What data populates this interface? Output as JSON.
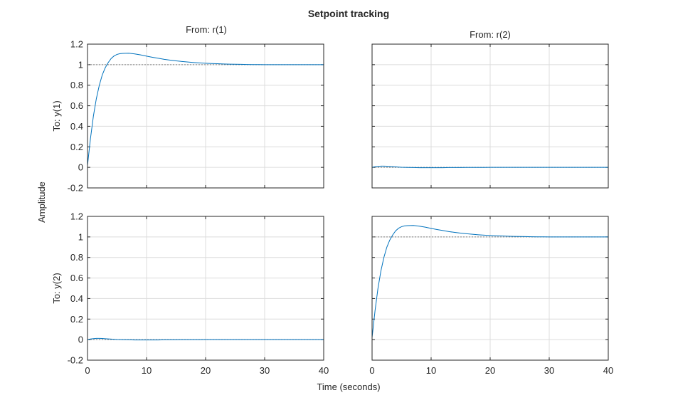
{
  "chart_data": {
    "type": "line",
    "title": "Setpoint tracking",
    "xlabel": "Time (seconds)",
    "ylabel": "Amplitude",
    "grid": true,
    "xlim": [
      0,
      40
    ],
    "ylim": [
      -0.2,
      1.2
    ],
    "xticks": [
      0,
      10,
      20,
      30,
      40
    ],
    "yticks": [
      -0.2,
      0,
      0.2,
      0.4,
      0.6,
      0.8,
      1,
      1.2
    ],
    "column_labels": [
      "From: r(1)",
      "From: r(2)"
    ],
    "row_labels": [
      "To: y(1)",
      "To: y(2)"
    ],
    "x": [
      0,
      0.5,
      1,
      1.5,
      2,
      2.5,
      3,
      3.5,
      4,
      4.5,
      5,
      5.5,
      6,
      7,
      8,
      9,
      10,
      11,
      12,
      13,
      14,
      15,
      16,
      17,
      18,
      19,
      20,
      21,
      22,
      23,
      24,
      25,
      26,
      27,
      28,
      29,
      30,
      32,
      34,
      36,
      38,
      40
    ],
    "panels": [
      {
        "row": 0,
        "col": 0,
        "reference": 1,
        "values": [
          0.02,
          0.28,
          0.5,
          0.67,
          0.8,
          0.9,
          0.97,
          1.02,
          1.06,
          1.085,
          1.1,
          1.107,
          1.11,
          1.112,
          1.105,
          1.095,
          1.083,
          1.072,
          1.062,
          1.052,
          1.044,
          1.037,
          1.031,
          1.026,
          1.021,
          1.017,
          1.014,
          1.011,
          1.009,
          1.007,
          1.005,
          1.004,
          1.003,
          1.002,
          1.001,
          1.001,
          1.0,
          1.0,
          1.0,
          1.0,
          1.0,
          1.0
        ]
      },
      {
        "row": 0,
        "col": 1,
        "reference": 0,
        "values": [
          0.0,
          0.006,
          0.01,
          0.012,
          0.012,
          0.011,
          0.009,
          0.007,
          0.005,
          0.003,
          0.001,
          0.0,
          -0.001,
          -0.002,
          -0.003,
          -0.003,
          -0.003,
          -0.003,
          -0.003,
          -0.002,
          -0.002,
          -0.002,
          -0.001,
          -0.001,
          -0.001,
          -0.001,
          0.0,
          0.0,
          0.0,
          0.0,
          0.0,
          0.0,
          0.0,
          0.0,
          0.0,
          0.0,
          0.0,
          0.0,
          0.0,
          0.0,
          0.0,
          0.0
        ]
      },
      {
        "row": 1,
        "col": 0,
        "reference": 0,
        "values": [
          0.0,
          0.006,
          0.01,
          0.012,
          0.012,
          0.011,
          0.009,
          0.007,
          0.005,
          0.003,
          0.001,
          0.0,
          -0.001,
          -0.002,
          -0.003,
          -0.003,
          -0.003,
          -0.003,
          -0.003,
          -0.002,
          -0.002,
          -0.002,
          -0.001,
          -0.001,
          -0.001,
          -0.001,
          0.0,
          0.0,
          0.0,
          0.0,
          0.0,
          0.0,
          0.0,
          0.0,
          0.0,
          0.0,
          0.0,
          0.0,
          0.0,
          0.0,
          0.0,
          0.0
        ]
      },
      {
        "row": 1,
        "col": 1,
        "reference": 1,
        "values": [
          0.02,
          0.28,
          0.5,
          0.67,
          0.8,
          0.9,
          0.97,
          1.02,
          1.06,
          1.085,
          1.1,
          1.107,
          1.11,
          1.112,
          1.105,
          1.095,
          1.083,
          1.072,
          1.062,
          1.052,
          1.044,
          1.037,
          1.031,
          1.026,
          1.021,
          1.017,
          1.014,
          1.011,
          1.009,
          1.007,
          1.005,
          1.004,
          1.003,
          1.002,
          1.001,
          1.001,
          1.0,
          1.0,
          1.0,
          1.0,
          1.0,
          1.0
        ]
      }
    ]
  }
}
